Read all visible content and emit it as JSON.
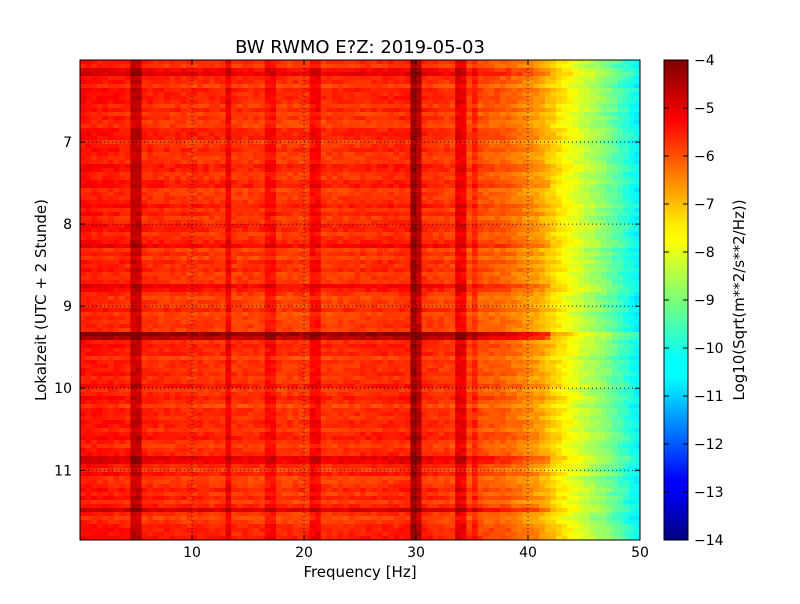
{
  "chart_data": {
    "type": "heatmap",
    "title": "BW RWMO E?Z: 2019-05-03",
    "xlabel": "Frequency [Hz]",
    "ylabel": "Lokalzeit (UTC + 2 Stunde)",
    "xlim": [
      0,
      50
    ],
    "ylim": [
      6,
      11.85
    ],
    "y_axis_inverted": true,
    "xticks": [
      10,
      20,
      30,
      40,
      50
    ],
    "yticks": [
      7,
      8,
      9,
      10,
      11
    ],
    "grid": true,
    "colorbar": {
      "label": "Log10(Sqrt(m**2/s**2/Hz))",
      "range": [
        -14,
        -4
      ],
      "ticks": [
        -4,
        -5,
        -6,
        -7,
        -8,
        -9,
        -10,
        -11,
        -12,
        -13,
        -14
      ],
      "colormap": "jet"
    },
    "level_profile": {
      "frequency_hz": [
        0,
        5,
        10,
        20,
        30,
        38,
        41,
        43,
        45,
        47,
        49,
        50
      ],
      "level": [
        -5.4,
        -5.6,
        -5.7,
        -5.8,
        -5.6,
        -6.2,
        -6.8,
        -7.6,
        -8.3,
        -9.0,
        -9.9,
        -10.4
      ]
    },
    "vertical_features": [
      {
        "frequency_hz": 5.0,
        "delta": 0.9
      },
      {
        "frequency_hz": 13.3,
        "delta": 0.6
      },
      {
        "frequency_hz": 17.0,
        "delta": 0.4
      },
      {
        "frequency_hz": 21.0,
        "delta": 0.5
      },
      {
        "frequency_hz": 29.9,
        "delta": 1.3
      },
      {
        "frequency_hz": 30.3,
        "delta": 1.0
      },
      {
        "frequency_hz": 34.0,
        "delta": 0.8
      },
      {
        "frequency_hz": 35.2,
        "delta": 0.4
      }
    ],
    "horizontal_features": [
      {
        "time_h": 9.35,
        "delta": 1.3
      },
      {
        "time_h": 9.38,
        "delta": 1.1
      },
      {
        "time_h": 11.48,
        "delta": 0.9
      },
      {
        "time_h": 10.88,
        "delta": 0.5
      },
      {
        "time_h": 8.75,
        "delta": 0.5
      },
      {
        "time_h": 8.28,
        "delta": 0.35
      },
      {
        "time_h": 7.55,
        "delta": 0.4
      },
      {
        "time_h": 6.15,
        "delta": 0.4
      }
    ]
  }
}
